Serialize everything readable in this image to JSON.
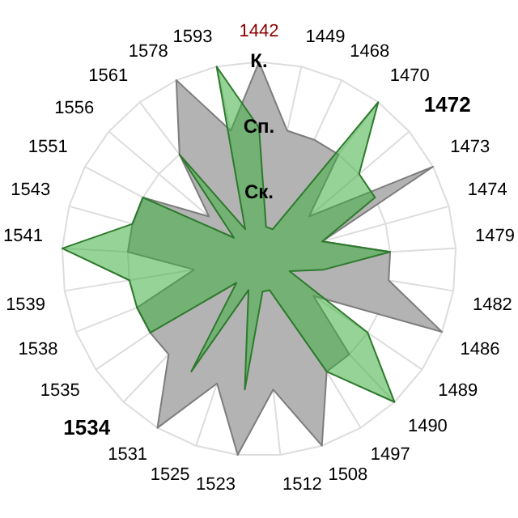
{
  "chart_data": {
    "type": "radar",
    "categories": [
      "1442",
      "1449",
      "1468",
      "1470",
      "1472",
      "1473",
      "1474",
      "1479",
      "1482",
      "1486",
      "1489",
      "1490",
      "1497",
      "1508",
      "1512",
      "1523",
      "1525",
      "1531",
      "1534",
      "1535",
      "1538",
      "1539",
      "1541",
      "1543",
      "1551",
      "1556",
      "1561",
      "1578",
      "1593"
    ],
    "series": [
      {
        "color": "#b3b3b3",
        "values": [
          3,
          2,
          2,
          2,
          1,
          3,
          1,
          2,
          2,
          3,
          1,
          2,
          2,
          3,
          2,
          3,
          2,
          3,
          2,
          2,
          2,
          1,
          2,
          2,
          2,
          1,
          2,
          3,
          2
        ]
      },
      {
        "color": "#3fae3f",
        "values": [
          2,
          0.5,
          0.5,
          3,
          2,
          2,
          1,
          2,
          1,
          0.5,
          2,
          3,
          2,
          0.5,
          0.5,
          2,
          0.5,
          2,
          0.5,
          2,
          2,
          2,
          3,
          2,
          2,
          0.5,
          2,
          0.5,
          3
        ]
      }
    ],
    "ylim": [
      0,
      3
    ],
    "yticks": [
      {
        "value": 1,
        "label": "Ск."
      },
      {
        "value": 2,
        "label": "Сп."
      },
      {
        "value": 3,
        "label": "К."
      }
    ],
    "grid": true,
    "legend": false,
    "marker": "none"
  }
}
